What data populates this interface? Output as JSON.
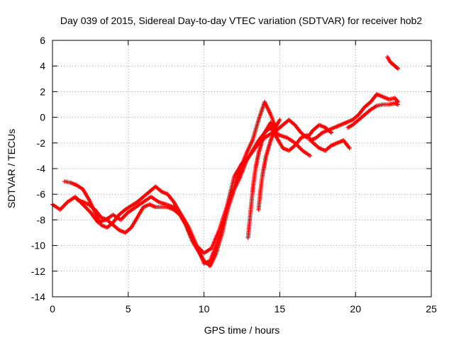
{
  "chart_data": {
    "type": "scatter",
    "title": "Day 039 of 2015, Sidereal Day-to-day VTEC variation (SDTVAR) for receiver hob2",
    "xlabel": "GPS time / hours",
    "ylabel": "SDTVAR / TECUs",
    "xlim": [
      0,
      25
    ],
    "ylim": [
      -14,
      6
    ],
    "xticks": [
      0,
      5,
      10,
      15,
      20,
      25
    ],
    "yticks": [
      -14,
      -12,
      -10,
      -8,
      -6,
      -4,
      -2,
      0,
      2,
      4,
      6
    ],
    "grid": true,
    "marker": "plus",
    "color": "#ff0000",
    "series": [
      {
        "x": [
          0.0,
          0.5,
          1.0,
          1.5,
          2.0,
          2.5,
          3.0,
          3.5,
          4.0,
          4.5,
          5.0,
          5.5,
          6.0,
          6.5,
          7.0,
          7.5,
          8.0,
          8.5,
          9.0,
          9.5,
          10.0,
          10.5,
          11.0,
          11.5,
          12.0,
          12.5,
          13.0,
          13.5,
          14.0,
          14.5,
          15.0,
          15.5,
          16.0,
          16.5,
          17.0
        ],
        "y": [
          -6.8,
          -7.2,
          -6.6,
          -6.2,
          -6.8,
          -7.4,
          -8.2,
          -8.0,
          -7.6,
          -8.0,
          -7.4,
          -7.0,
          -6.6,
          -6.2,
          -6.6,
          -6.8,
          -7.0,
          -7.6,
          -8.6,
          -10.0,
          -10.6,
          -10.2,
          -8.8,
          -7.0,
          -4.6,
          -3.6,
          -3.0,
          -2.2,
          -1.6,
          -1.2,
          -1.4,
          -1.6,
          -2.0,
          -2.6,
          -3.0
        ]
      },
      {
        "x": [
          0.8,
          1.2,
          1.6,
          2.0,
          2.4,
          2.8,
          3.2,
          3.6,
          4.0,
          4.4,
          4.8,
          5.2,
          5.6,
          6.0,
          6.4,
          6.8,
          7.2,
          7.6,
          8.0,
          8.4,
          8.8,
          9.2,
          9.6,
          10.0,
          10.4,
          10.8,
          11.2,
          11.6,
          12.0,
          12.4,
          12.8,
          13.2,
          13.6,
          14.0,
          14.4,
          14.8,
          15.2,
          15.6,
          16.0,
          16.4,
          16.8,
          17.2,
          17.6,
          18.0,
          18.4
        ],
        "y": [
          -5.0,
          -5.1,
          -5.3,
          -5.6,
          -6.4,
          -7.4,
          -8.4,
          -8.6,
          -8.2,
          -7.6,
          -7.2,
          -6.9,
          -6.6,
          -6.2,
          -5.8,
          -5.4,
          -5.8,
          -6.0,
          -6.6,
          -7.4,
          -8.4,
          -9.4,
          -10.2,
          -11.4,
          -11.2,
          -10.0,
          -8.6,
          -6.8,
          -5.4,
          -4.0,
          -2.8,
          -1.8,
          -0.2,
          1.2,
          0.2,
          -1.0,
          -0.6,
          -0.2,
          -0.6,
          -1.2,
          -1.6,
          -1.0,
          -0.6,
          -0.8,
          -1.2
        ]
      },
      {
        "x": [
          1.6,
          2.0,
          2.4,
          2.8,
          3.2,
          3.6,
          4.0,
          4.4,
          4.8,
          5.2,
          5.6,
          6.0,
          6.4,
          6.8,
          7.2,
          7.6,
          8.0,
          8.4,
          8.8,
          9.2,
          9.6,
          10.0,
          10.4,
          10.8,
          11.2,
          11.6,
          12.0,
          12.4,
          12.8,
          13.2,
          13.6,
          14.0,
          14.4,
          14.8,
          15.2,
          15.6,
          16.0,
          16.4,
          16.8,
          17.2,
          17.6,
          18.0,
          18.4,
          18.8,
          19.2,
          19.6
        ],
        "y": [
          -6.4,
          -6.6,
          -6.8,
          -7.2,
          -7.8,
          -8.0,
          -8.4,
          -8.8,
          -9.0,
          -8.6,
          -7.8,
          -7.0,
          -6.8,
          -7.0,
          -7.0,
          -7.0,
          -7.2,
          -7.6,
          -8.4,
          -9.6,
          -10.4,
          -11.2,
          -11.6,
          -10.6,
          -9.0,
          -7.0,
          -5.6,
          -4.6,
          -3.4,
          -2.6,
          -1.8,
          -1.2,
          -0.8,
          -1.6,
          -2.4,
          -2.6,
          -2.2,
          -1.6,
          -1.4,
          -2.0,
          -2.4,
          -2.6,
          -2.2,
          -2.0,
          -1.8,
          -2.4
        ]
      },
      {
        "x": [
          12.9,
          13.0,
          13.1,
          13.2,
          13.3,
          13.4,
          13.5,
          13.6,
          13.7,
          13.8,
          13.9,
          14.0,
          14.2,
          14.4,
          14.6,
          14.8
        ],
        "y": [
          -9.4,
          -8.2,
          -7.0,
          -5.8,
          -4.8,
          -4.0,
          -3.4,
          -2.8,
          -2.4,
          -2.0,
          -1.6,
          -1.2,
          -0.8,
          -0.4,
          -0.8,
          -1.2
        ]
      },
      {
        "x": [
          13.6,
          13.7,
          13.8,
          13.9,
          14.0,
          14.1,
          14.2,
          14.3,
          14.4,
          14.6,
          14.8,
          15.0
        ],
        "y": [
          -7.2,
          -6.0,
          -5.0,
          -4.2,
          -3.6,
          -3.0,
          -2.6,
          -2.2,
          -1.8,
          -1.2,
          -0.6,
          -0.2
        ]
      },
      {
        "x": [
          17.0,
          17.4,
          17.8,
          18.2,
          18.6,
          19.0,
          19.4,
          19.8,
          20.2,
          20.6,
          21.0,
          21.4,
          21.8,
          22.2,
          22.6,
          22.8
        ],
        "y": [
          -1.8,
          -1.6,
          -1.2,
          -1.0,
          -0.8,
          -0.6,
          -0.4,
          -0.2,
          0.2,
          0.8,
          1.2,
          1.8,
          1.6,
          1.4,
          1.5,
          1.2
        ]
      },
      {
        "x": [
          19.5,
          19.8,
          20.2,
          20.6,
          21.0,
          21.4,
          21.8,
          22.2,
          22.6,
          22.8
        ],
        "y": [
          -0.8,
          -0.6,
          -0.2,
          0.2,
          0.6,
          0.9,
          1.0,
          1.0,
          1.1,
          1.0
        ]
      },
      {
        "x": [
          22.1,
          22.2,
          22.3,
          22.4,
          22.5,
          22.6,
          22.7,
          22.8
        ],
        "y": [
          4.7,
          4.5,
          4.3,
          4.2,
          4.1,
          4.0,
          3.9,
          3.8
        ]
      }
    ]
  }
}
